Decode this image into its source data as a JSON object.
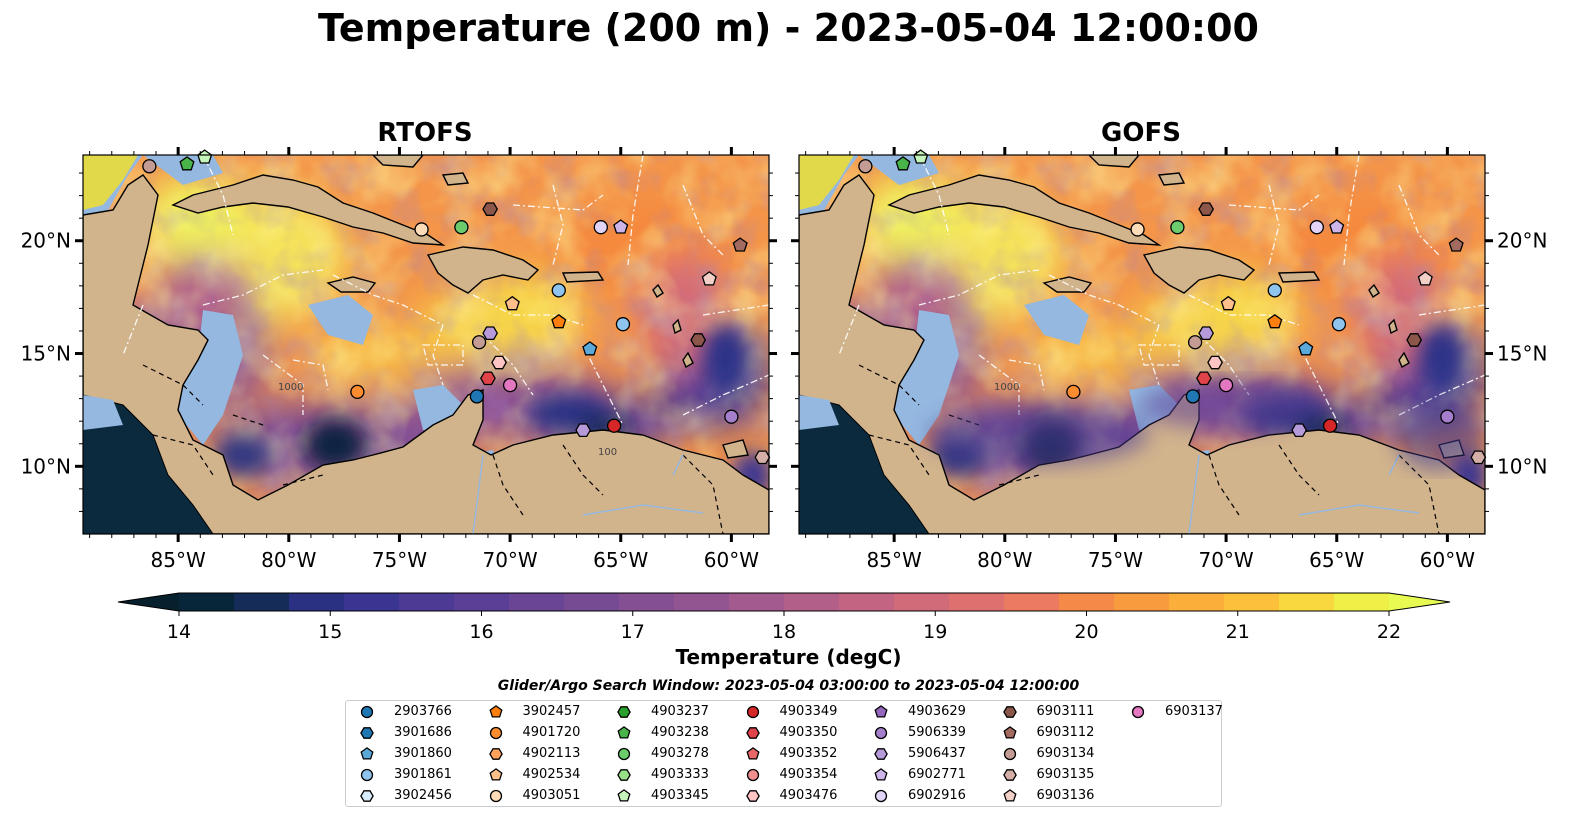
{
  "figure": {
    "title": "Temperature (200 m) - 2023-05-04 12:00:00",
    "panels": [
      {
        "title": "RTOFS",
        "key": "rtofs"
      },
      {
        "title": "GOFS",
        "key": "gofs"
      }
    ],
    "lon_ticks": [
      "85°W",
      "80°W",
      "75°W",
      "70°W",
      "65°W",
      "60°W"
    ],
    "lat_ticks": [
      "20°N",
      "15°N",
      "10°N"
    ],
    "contour_labels": [
      "1000",
      "100"
    ]
  },
  "colorbar": {
    "label": "Temperature (degC)",
    "ticks": [
      "14",
      "15",
      "16",
      "17",
      "18",
      "19",
      "20",
      "21",
      "22"
    ],
    "vmin": 14,
    "vmax": 22,
    "step": 0.5,
    "extend": "both",
    "colors": [
      "#08263a",
      "#142c57",
      "#2a3183",
      "#3b3592",
      "#4c3a95",
      "#5b3e95",
      "#6a4495",
      "#774a94",
      "#845093",
      "#935592",
      "#a25a8f",
      "#b25f89",
      "#c26482",
      "#d16a79",
      "#df7070",
      "#ea7a60",
      "#f48a48",
      "#f89b3f",
      "#fbae3a",
      "#fcc03a",
      "#f9d73f",
      "#eef048"
    ],
    "under_color": "#06202e",
    "over_color": "#e7fb53"
  },
  "colors": {
    "land": "#d2b48c",
    "shelf": "#94b8e0",
    "gulf_water": "#1c2c4c"
  },
  "search_window": {
    "title": "Glider/Argo Search Window: 2023-05-04 03:00:00 to 2023-05-04 12:00:00"
  },
  "legend": [
    {
      "id": "2903766",
      "marker": "circle",
      "color": "#1f77b4"
    },
    {
      "id": "3901686",
      "marker": "hexagon",
      "color": "#1f77b4"
    },
    {
      "id": "3901860",
      "marker": "pentagon",
      "color": "#5aa9d9"
    },
    {
      "id": "3901861",
      "marker": "circle",
      "color": "#8fc4ee"
    },
    {
      "id": "3902456",
      "marker": "hexagon",
      "color": "#d7ecfa"
    },
    {
      "id": "3902457",
      "marker": "pentagon",
      "color": "#ff7f0e"
    },
    {
      "id": "4901720",
      "marker": "circle",
      "color": "#ff8c2e"
    },
    {
      "id": "4902113",
      "marker": "hexagon",
      "color": "#ffa25c"
    },
    {
      "id": "4902534",
      "marker": "pentagon",
      "color": "#ffbf8a"
    },
    {
      "id": "4903051",
      "marker": "circle",
      "color": "#ffdcb8"
    },
    {
      "id": "4903237",
      "marker": "hexagon",
      "color": "#2ca02c"
    },
    {
      "id": "4903238",
      "marker": "pentagon",
      "color": "#49b449"
    },
    {
      "id": "4903278",
      "marker": "circle",
      "color": "#6ccb6c"
    },
    {
      "id": "4903333",
      "marker": "hexagon",
      "color": "#98df8a"
    },
    {
      "id": "4903345",
      "marker": "pentagon",
      "color": "#c6f5bb"
    },
    {
      "id": "4903349",
      "marker": "circle",
      "color": "#d62728"
    },
    {
      "id": "4903350",
      "marker": "hexagon",
      "color": "#e0444a"
    },
    {
      "id": "4903352",
      "marker": "pentagon",
      "color": "#ea6868"
    },
    {
      "id": "4903354",
      "marker": "circle",
      "color": "#f29090"
    },
    {
      "id": "4903476",
      "marker": "hexagon",
      "color": "#ffc4c4"
    },
    {
      "id": "4903629",
      "marker": "pentagon",
      "color": "#9467bd"
    },
    {
      "id": "5906339",
      "marker": "circle",
      "color": "#a57fcb"
    },
    {
      "id": "5906437",
      "marker": "hexagon",
      "color": "#b79ad9"
    },
    {
      "id": "6902771",
      "marker": "pentagon",
      "color": "#cdb5ea"
    },
    {
      "id": "6902916",
      "marker": "circle",
      "color": "#e2d4f7"
    },
    {
      "id": "6903111",
      "marker": "hexagon",
      "color": "#8c564b"
    },
    {
      "id": "6903112",
      "marker": "pentagon",
      "color": "#a36b5f"
    },
    {
      "id": "6903134",
      "marker": "circle",
      "color": "#c49c94"
    },
    {
      "id": "6903135",
      "marker": "hexagon",
      "color": "#d4aea7"
    },
    {
      "id": "6903136",
      "marker": "pentagon",
      "color": "#f2d0c8"
    },
    {
      "id": "6903137",
      "marker": "circle",
      "color": "#e377c2"
    }
  ],
  "floats": [
    {
      "lon": -86.3,
      "lat": 23.3,
      "id": "6903134"
    },
    {
      "lon": -84.6,
      "lat": 23.4,
      "id": "4903238"
    },
    {
      "lon": -83.8,
      "lat": 23.7,
      "id": "4903345"
    },
    {
      "lon": -74.0,
      "lat": 20.5,
      "id": "4903051"
    },
    {
      "lon": -72.2,
      "lat": 20.6,
      "id": "4903278"
    },
    {
      "lon": -70.9,
      "lat": 21.4,
      "id": "6903111"
    },
    {
      "lon": -65.9,
      "lat": 20.6,
      "id": "6902916"
    },
    {
      "lon": -65.0,
      "lat": 20.6,
      "id": "6902771"
    },
    {
      "lon": -59.6,
      "lat": 19.8,
      "id": "6903112"
    },
    {
      "lon": -61.0,
      "lat": 18.3,
      "id": "6903136"
    },
    {
      "lon": -67.8,
      "lat": 17.8,
      "id": "3901861"
    },
    {
      "lon": -69.9,
      "lat": 17.2,
      "id": "4902534"
    },
    {
      "lon": -67.8,
      "lat": 16.4,
      "id": "3902457"
    },
    {
      "lon": -64.9,
      "lat": 16.3,
      "id": "3901861"
    },
    {
      "lon": -70.9,
      "lat": 15.9,
      "id": "5906437"
    },
    {
      "lon": -71.4,
      "lat": 15.5,
      "id": "6903134"
    },
    {
      "lon": -61.5,
      "lat": 15.6,
      "id": "6903111"
    },
    {
      "lon": -70.5,
      "lat": 14.6,
      "id": "4903476"
    },
    {
      "lon": -66.4,
      "lat": 15.2,
      "id": "3901860"
    },
    {
      "lon": -71.0,
      "lat": 13.9,
      "id": "4903350"
    },
    {
      "lon": -70.0,
      "lat": 13.6,
      "id": "6903137"
    },
    {
      "lon": -76.9,
      "lat": 13.3,
      "id": "4901720"
    },
    {
      "lon": -71.5,
      "lat": 13.1,
      "id": "2903766"
    },
    {
      "lon": -60.0,
      "lat": 12.2,
      "id": "5906339"
    },
    {
      "lon": -65.3,
      "lat": 11.8,
      "id": "4903349"
    },
    {
      "lon": -66.7,
      "lat": 11.6,
      "id": "5906437"
    },
    {
      "lon": -58.6,
      "lat": 10.4,
      "id": "6903135"
    }
  ]
}
